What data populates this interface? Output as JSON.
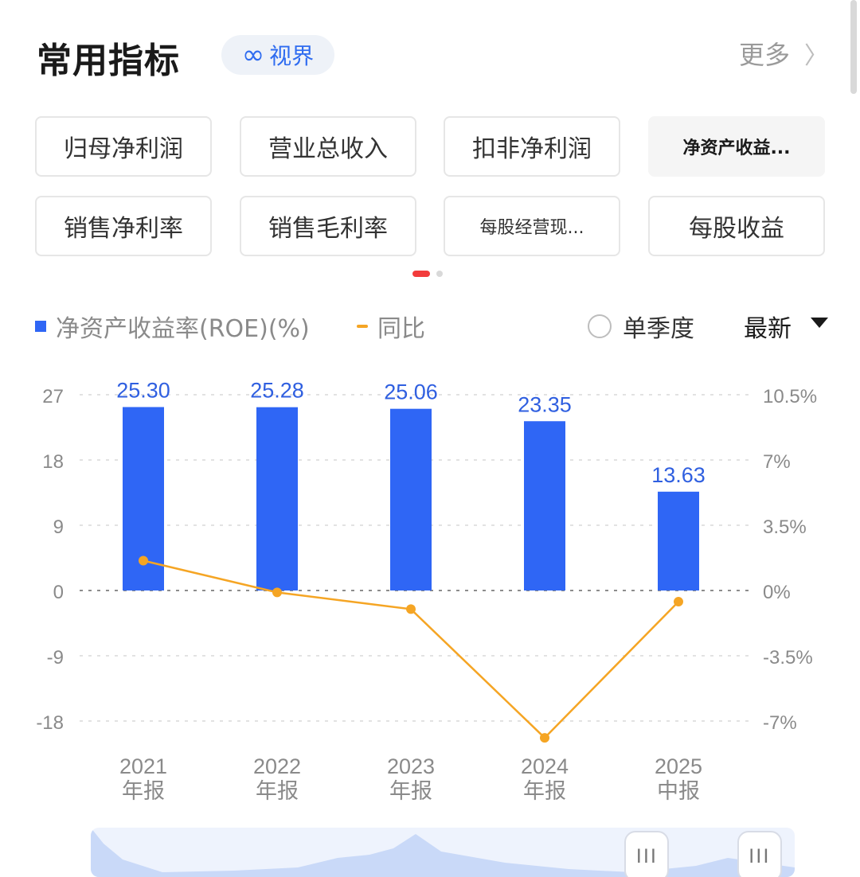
{
  "header": {
    "title": "常用指标",
    "vision_label": "视界",
    "more_label": "更多"
  },
  "metrics": [
    {
      "label": "归母净利润",
      "active": false
    },
    {
      "label": "营业总收入",
      "active": false
    },
    {
      "label": "扣非净利润",
      "active": false
    },
    {
      "label": "净资产收益...",
      "active": true
    },
    {
      "label": "销售净利率",
      "active": false
    },
    {
      "label": "销售毛利率",
      "active": false
    },
    {
      "label": "每股经营现...",
      "active": false
    },
    {
      "label": "每股收益",
      "active": false
    }
  ],
  "legend": {
    "bar_label": "净资产收益率(ROE)(%)",
    "line_label": "同比",
    "quarter_label": "单季度",
    "latest_label": "最新"
  },
  "colors": {
    "bar": "#2f66f5",
    "line": "#f5a524",
    "active_dot": "#f23c3c"
  },
  "chart_data": {
    "type": "bar",
    "categories": [
      "2021\n年报",
      "2022\n年报",
      "2023\n年报",
      "2024\n年报",
      "2025\n中报"
    ],
    "series": [
      {
        "name": "净资产收益率(ROE)(%)",
        "type": "bar",
        "axis": "left",
        "values": [
          25.3,
          25.28,
          25.06,
          23.35,
          13.63
        ],
        "labels": [
          "25.30",
          "25.28",
          "25.06",
          "23.35",
          "13.63"
        ]
      },
      {
        "name": "同比",
        "type": "line",
        "axis": "right",
        "values": [
          1.6,
          -0.1,
          -1.0,
          -7.9,
          -0.6
        ]
      }
    ],
    "y_left": {
      "ticks": [
        27,
        18,
        9,
        0,
        -9,
        -18
      ],
      "tick_labels": [
        "27",
        "18",
        "9",
        "0",
        "-9",
        "-18"
      ],
      "range": [
        -18,
        27
      ]
    },
    "y_right": {
      "ticks": [
        10.5,
        7,
        3.5,
        0,
        -3.5,
        -7
      ],
      "tick_labels": [
        "10.5%",
        "7%",
        "3.5%",
        "0%",
        "-3.5%",
        "-7%"
      ],
      "range": [
        -7,
        10.5
      ]
    },
    "grid": true,
    "legend_position": "top"
  },
  "range_slider": {
    "handle_glyph": "III",
    "start": 0.79,
    "end": 0.95
  }
}
